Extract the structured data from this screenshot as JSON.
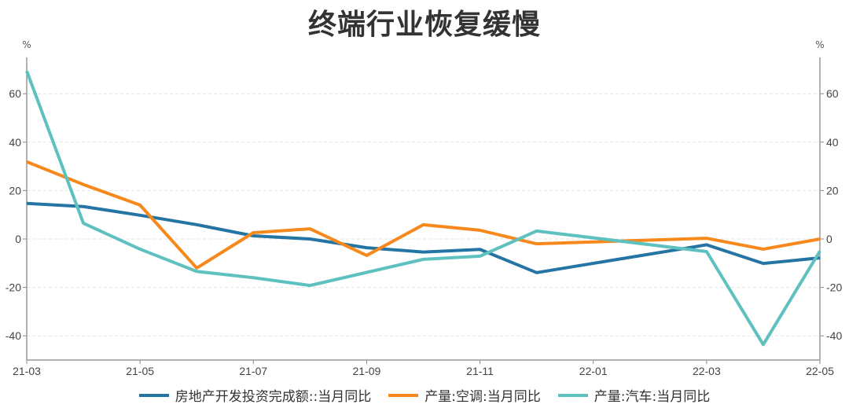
{
  "title": "终端行业恢复缓慢",
  "chart_data": {
    "type": "line",
    "title": "终端行业恢复缓慢",
    "x": [
      "21-03",
      "21-04",
      "21-05",
      "21-06",
      "21-07",
      "21-08",
      "21-09",
      "21-10",
      "21-11",
      "21-12",
      "22-01",
      "22-02",
      "22-03",
      "22-04",
      "22-05"
    ],
    "x_tick_labels": [
      "21-03",
      "21-05",
      "21-07",
      "21-09",
      "21-11",
      "22-01",
      "22-03",
      "22-05"
    ],
    "ylabel_left": "%",
    "ylabel_right": "%",
    "ylim": [
      -50,
      75
    ],
    "y_ticks": [
      60,
      40,
      20,
      0,
      -20,
      -40
    ],
    "grid": true,
    "legend_position": "bottom",
    "series": [
      {
        "name": "房地产开发投资完成额::当月同比",
        "color": "#2474a4",
        "values": [
          14.7,
          13.4,
          9.8,
          5.9,
          1.3,
          0.0,
          -3.6,
          -5.4,
          -4.3,
          -13.9,
          null,
          null,
          -2.4,
          -10.1,
          -7.8
        ]
      },
      {
        "name": "产量:空调:当月同比",
        "color": "#f7891c",
        "values": [
          31.9,
          22.5,
          14.0,
          -12.0,
          2.6,
          4.2,
          -6.8,
          5.9,
          3.6,
          -2.0,
          null,
          null,
          0.3,
          -4.2,
          0.0
        ]
      },
      {
        "name": "产量:汽车:当月同比",
        "color": "#5ec1c0",
        "values": [
          69.4,
          6.5,
          -4.2,
          -13.4,
          -16.0,
          -19.2,
          -13.8,
          -8.4,
          -7.1,
          3.3,
          null,
          null,
          -5.2,
          -43.6,
          -5.0
        ]
      }
    ]
  }
}
